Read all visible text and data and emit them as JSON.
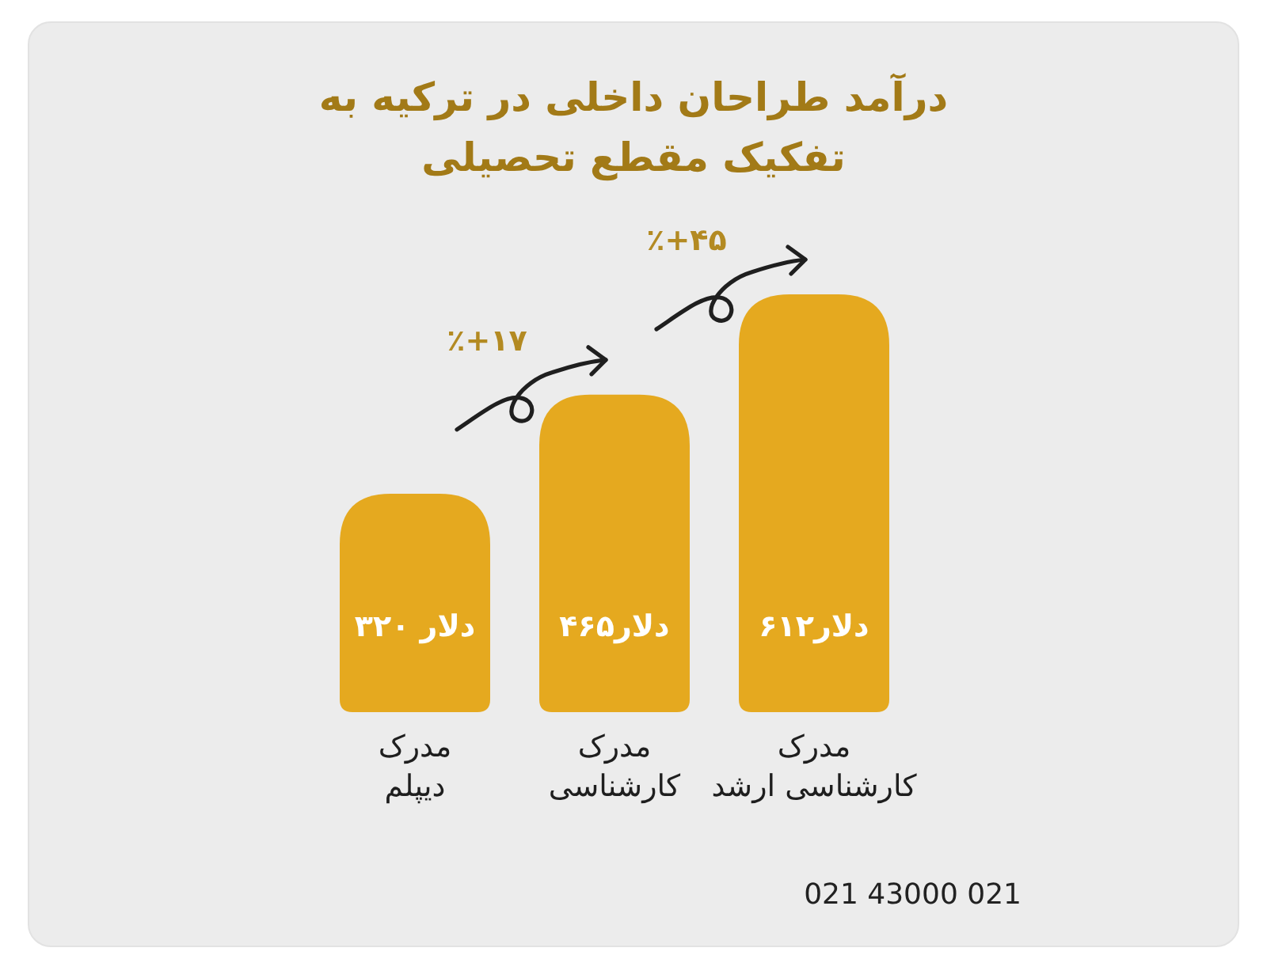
{
  "chart_data": {
    "type": "bar",
    "title": "درآمد طراحان داخلی در ترکیه به\nتفکیک مقطع تحصیلی",
    "categories": [
      "مدرک\nدیپلم",
      "مدرک\nکارشناسی",
      "مدرک\nکارشناسی ارشد"
    ],
    "values": [
      320,
      465,
      612
    ],
    "color": "#e5a91f",
    "value_labels": [
      "۳۲۰ دلار",
      "۴۶۵دلار",
      "۶۱۲دلار"
    ],
    "annotations": [
      "٪+۱۷",
      "٪+۴۵",
      "021 43000 021"
    ]
  }
}
